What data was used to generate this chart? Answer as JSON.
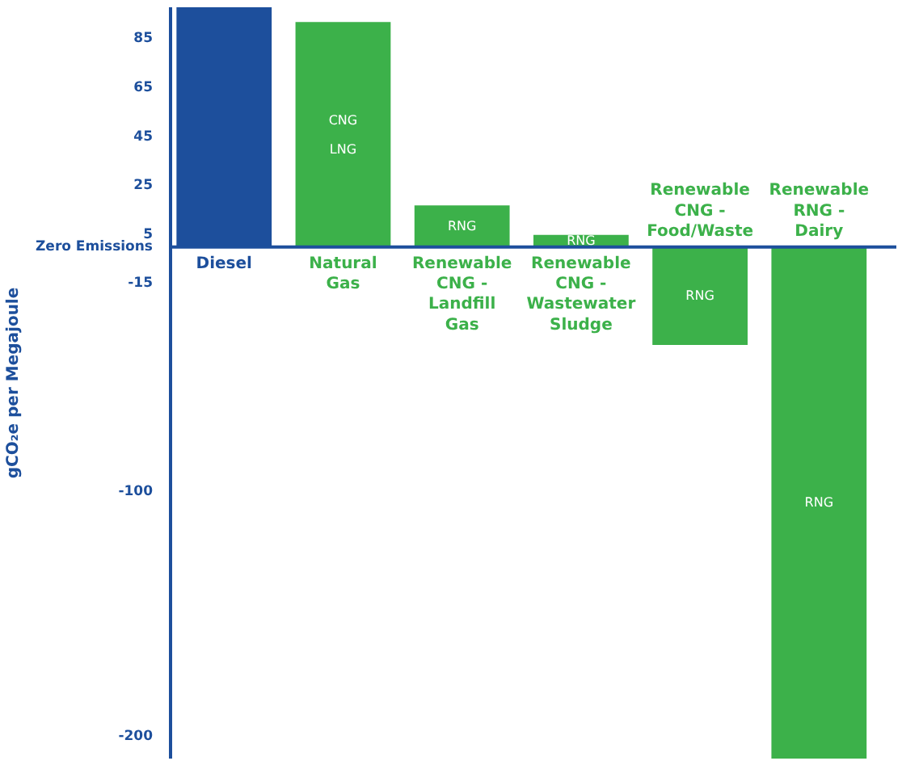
{
  "chart_data": {
    "type": "bar",
    "ylabel": "gCO₂e per Megajoule",
    "categories": [
      "Diesel",
      "Natural Gas",
      "Renewable CNG - Landfill Gas",
      "Renewable CNG - Wastewater Sludge",
      "Renewable CNG - Food/Waste",
      "Renewable RNG - Dairy"
    ],
    "values": [
      98,
      92,
      17,
      5,
      -40,
      -209
    ],
    "colors": [
      "#1d4f9c",
      "#3cb14a",
      "#3cb14a",
      "#3cb14a",
      "#3cb14a",
      "#3cb14a"
    ],
    "ylim": [
      -209,
      98
    ],
    "yticks": [
      -200,
      -100,
      -15,
      {
        "value": 0,
        "label": "Zero Emissions"
      },
      5,
      25,
      45,
      65,
      85
    ],
    "grid": false,
    "annotations": [
      "CNG",
      "LNG",
      "RNG",
      "RNG",
      "RNG",
      "RNG"
    ]
  }
}
